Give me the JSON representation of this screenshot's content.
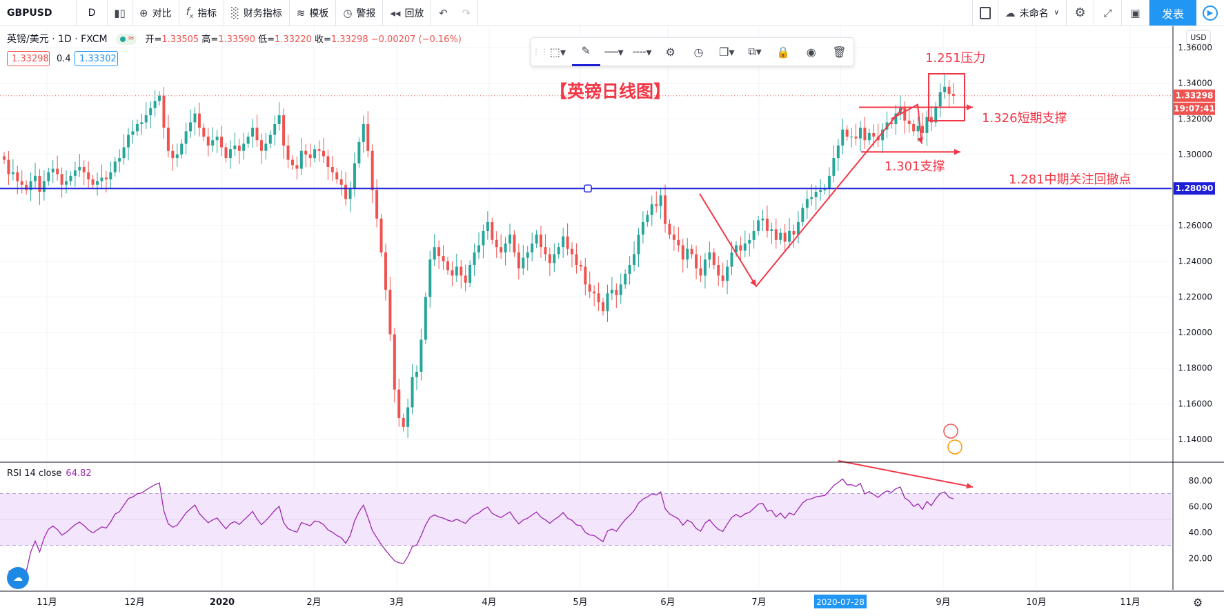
{
  "toolbar": {
    "symbol": "GBPUSD",
    "interval": "D",
    "compare": "对比",
    "indicators": "指标",
    "financials": "财务指标",
    "templates": "模板",
    "alert": "警报",
    "replay": "回放",
    "layout_name": "未命名",
    "publish": "发表"
  },
  "legend": {
    "title": "英镑/美元 · 1D · FXCM",
    "open_label": "开=",
    "open": "1.33505",
    "high_label": "高=",
    "high": "1.33590",
    "low_label": "低=",
    "low": "1.33220",
    "close_label": "收=",
    "close": "1.33298",
    "change": "−0.00207 (−0.16%)",
    "bid": "1.33298",
    "spread": "0.4",
    "ask": "1.33302"
  },
  "price_scale": {
    "currency": "USD",
    "last_price": "1.33298",
    "countdown": "19:07:41",
    "hline_price": "1.28090"
  },
  "rsi": {
    "label": "RSI 14 close",
    "value": "64.82",
    "upper_band": 70,
    "lower_band": 30,
    "ticks": [
      "80.00",
      "60.00",
      "40.00",
      "20.00"
    ]
  },
  "annotations": {
    "title": "【英镑日线图】",
    "resistance": "1.251压力",
    "short_support": "1.326短期支撑",
    "support": "1.301支撑",
    "mid_pullback": "1.281中期关注回撤点"
  },
  "colors": {
    "up": "#26a69a",
    "down": "#ef5350",
    "hline": "#1e20d6",
    "annotation": "#f23645",
    "rsi_line": "#9c27b0",
    "rsi_band": "#f3e5fc",
    "accent": "#2196f3"
  },
  "chart_data": {
    "type": "candlestick",
    "symbol": "GBPUSD",
    "x_ticks": [
      "11月",
      "12月",
      "2020",
      "2月",
      "3月",
      "4月",
      "5月",
      "6月",
      "7月",
      "2020-07-28",
      "9月",
      "10月",
      "11月"
    ],
    "y_ticks": [
      "1.36000",
      "1.34000",
      "1.32000",
      "1.30000",
      "1.28000",
      "1.26000",
      "1.24000",
      "1.22000",
      "1.20000",
      "1.18000",
      "1.16000",
      "1.14000"
    ],
    "ylim": [
      1.128,
      1.372
    ],
    "horizontal_line": 1.2809,
    "closes": [
      1.297,
      1.289,
      1.29,
      1.285,
      1.283,
      1.28,
      1.285,
      1.288,
      1.279,
      1.285,
      1.29,
      1.292,
      1.289,
      1.283,
      1.285,
      1.288,
      1.291,
      1.293,
      1.29,
      1.286,
      1.283,
      1.285,
      1.287,
      1.286,
      1.29,
      1.296,
      1.298,
      1.304,
      1.311,
      1.313,
      1.317,
      1.318,
      1.322,
      1.326,
      1.33,
      1.333,
      1.315,
      1.302,
      1.298,
      1.3,
      1.306,
      1.313,
      1.318,
      1.323,
      1.315,
      1.31,
      1.305,
      1.308,
      1.31,
      1.304,
      1.298,
      1.303,
      1.305,
      1.302,
      1.306,
      1.31,
      1.315,
      1.308,
      1.302,
      1.306,
      1.311,
      1.317,
      1.322,
      1.305,
      1.297,
      1.294,
      1.292,
      1.302,
      1.3,
      1.298,
      1.303,
      1.302,
      1.299,
      1.293,
      1.29,
      1.286,
      1.283,
      1.275,
      1.281,
      1.295,
      1.307,
      1.317,
      1.302,
      1.28,
      1.264,
      1.245,
      1.224,
      1.199,
      1.168,
      1.152,
      1.147,
      1.158,
      1.175,
      1.178,
      1.196,
      1.22,
      1.241,
      1.248,
      1.243,
      1.24,
      1.235,
      1.232,
      1.237,
      1.232,
      1.228,
      1.238,
      1.245,
      1.249,
      1.257,
      1.262,
      1.252,
      1.248,
      1.245,
      1.25,
      1.255,
      1.245,
      1.236,
      1.242,
      1.245,
      1.25,
      1.255,
      1.248,
      1.244,
      1.239,
      1.244,
      1.248,
      1.254,
      1.247,
      1.244,
      1.238,
      1.237,
      1.227,
      1.223,
      1.222,
      1.217,
      1.212,
      1.222,
      1.224,
      1.221,
      1.227,
      1.233,
      1.238,
      1.244,
      1.255,
      1.262,
      1.266,
      1.272,
      1.271,
      1.277,
      1.261,
      1.255,
      1.252,
      1.249,
      1.241,
      1.247,
      1.244,
      1.236,
      1.232,
      1.241,
      1.245,
      1.238,
      1.232,
      1.229,
      1.237,
      1.245,
      1.249,
      1.246,
      1.25,
      1.252,
      1.257,
      1.263,
      1.264,
      1.257,
      1.258,
      1.252,
      1.256,
      1.251,
      1.257,
      1.255,
      1.262,
      1.27,
      1.275,
      1.276,
      1.279,
      1.28,
      1.281,
      1.288,
      1.298,
      1.305,
      1.314,
      1.31,
      1.31,
      1.309,
      1.315,
      1.308,
      1.312,
      1.31,
      1.308,
      1.314,
      1.318,
      1.317,
      1.323,
      1.326,
      1.319,
      1.317,
      1.313,
      1.316,
      1.312,
      1.321,
      1.318,
      1.327,
      1.335,
      1.338,
      1.334,
      1.333
    ]
  }
}
